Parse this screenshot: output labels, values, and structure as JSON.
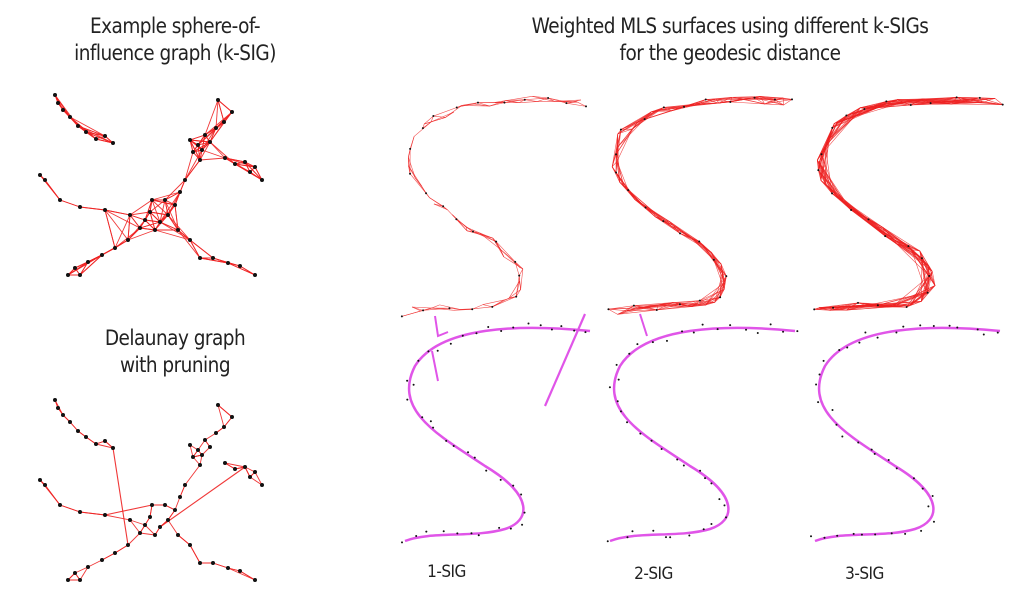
{
  "titles": {
    "ksig": [
      "Example sphere-of-",
      "influence graph (k-SIG)"
    ],
    "delaunay": [
      "Delaunay graph",
      "with pruning"
    ],
    "mls": [
      "Weighted MLS surfaces using different k-SIGs",
      "for the geodesic distance"
    ]
  },
  "columns": [
    {
      "label": "1-SIG",
      "k": 1
    },
    {
      "label": "2-SIG",
      "k": 2
    },
    {
      "label": "3-SIG",
      "k": 3
    }
  ],
  "colors": {
    "edge": "#ee2222",
    "surface": "#e055e8",
    "node": "#111111"
  }
}
